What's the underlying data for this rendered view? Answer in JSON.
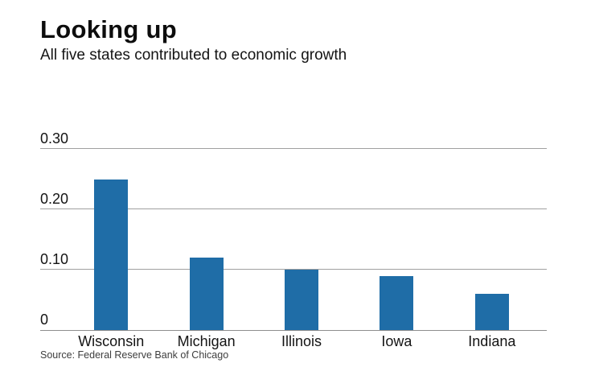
{
  "header": {
    "title": "Looking up",
    "subtitle": "All five states contributed to economic growth"
  },
  "footer": {
    "source": "Source: Federal Reserve Bank of Chicago"
  },
  "colors": {
    "bar": "#1F6DA7",
    "grid": "#a0a0a0",
    "axis": "#8e8e8e",
    "text": "#141414"
  },
  "chart_data": {
    "type": "bar",
    "categories": [
      "Wisconsin",
      "Michigan",
      "Illinois",
      "Iowa",
      "Indiana"
    ],
    "values": [
      0.25,
      0.12,
      0.1,
      0.09,
      0.06
    ],
    "title": "Looking up",
    "subtitle": "All five states contributed to economic growth",
    "xlabel": "",
    "ylabel": "",
    "ylim": [
      0,
      0.3
    ],
    "yticks": [
      {
        "value": 0.0,
        "label": "0"
      },
      {
        "value": 0.1,
        "label": "0.10"
      },
      {
        "value": 0.2,
        "label": "0.20"
      },
      {
        "value": 0.3,
        "label": "0.30"
      }
    ],
    "grid": true,
    "legend": false,
    "bar_color": "#1F6DA7",
    "source": "Source: Federal Reserve Bank of Chicago"
  }
}
